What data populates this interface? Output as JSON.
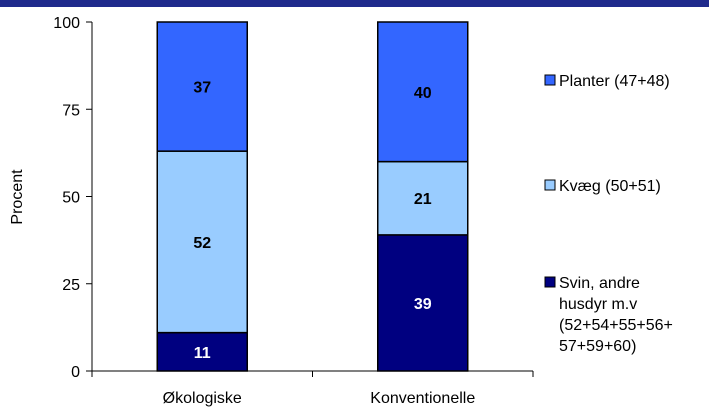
{
  "chart_data": {
    "type": "bar",
    "stacked": true,
    "categories": [
      "Økologiske",
      "Konventionelle"
    ],
    "series": [
      {
        "name": "Svin, andre husdyr m.v (52+54+55+56+57+59+60)",
        "name_lines": [
          "Svin, andre",
          "husdyr m.v",
          "(52+54+55+56+",
          "57+59+60)"
        ],
        "values": [
          11,
          39
        ],
        "color": "#000080",
        "label_color": "#ffffff"
      },
      {
        "name": "Kvæg (50+51)",
        "name_lines": [
          "Kvæg (50+51)"
        ],
        "values": [
          52,
          21
        ],
        "color": "#99ccff",
        "label_color": "#000000"
      },
      {
        "name": "Planter (47+48)",
        "name_lines": [
          "Planter (47+48)"
        ],
        "values": [
          37,
          40
        ],
        "color": "#3366ff",
        "label_color": "#000000"
      }
    ],
    "ylabel": "Procent",
    "xlabel": "",
    "ylim": [
      0,
      100
    ],
    "yticks": [
      0,
      25,
      50,
      75,
      100
    ],
    "grid": false,
    "legend": "right",
    "top_band_color": "#1f2a8c"
  }
}
